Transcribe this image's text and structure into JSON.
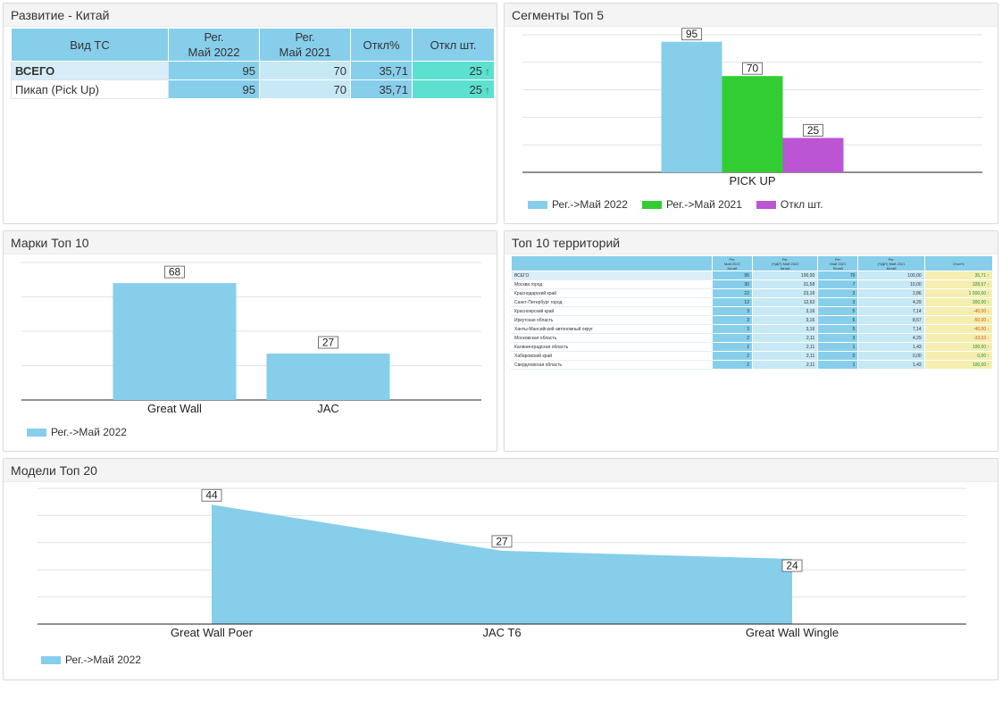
{
  "panel1": {
    "title": "Развитие - Китай",
    "headers": [
      "Вид ТС",
      "Рег.\nМай 2022",
      "Рег.\nМай 2021",
      "Откл%",
      "Откл шт."
    ],
    "rows": [
      {
        "label": "ВСЕГО",
        "v2022": "95",
        "v2021": "70",
        "pct": "35,71",
        "diff": "25",
        "arrow": "↑"
      },
      {
        "label": "Пикап (Pick Up)",
        "v2022": "95",
        "v2021": "70",
        "pct": "35,71",
        "diff": "25",
        "arrow": "↑"
      }
    ]
  },
  "panel2": {
    "title": "Сегменты Топ 5",
    "legend": [
      "Рег.->Май 2022",
      "Рег.->Май 2021",
      "Откл шт."
    ]
  },
  "panel3": {
    "title": "Марки Топ 10",
    "legend": [
      "Рег.->Май 2022"
    ]
  },
  "panel4": {
    "title": "Топ 10 территорий",
    "headers": [
      "",
      "Рег.\nМай 2022\nКитай",
      "Рег.\n(%ДП) Май 2022\nКитай",
      "Рег.\nМай 2021\nКитай",
      "Рег.\n(%ДП) Май 2021\nКитай",
      "Откл%"
    ],
    "rows": [
      {
        "label": "ВСЕГО",
        "a": "95",
        "b": "100,00",
        "c": "70",
        "d": "100,00",
        "e": "35,71",
        "dir": "up"
      },
      {
        "label": "Москва город",
        "a": "30",
        "b": "31,58",
        "c": "7",
        "d": "10,00",
        "e": "328,57",
        "dir": "up"
      },
      {
        "label": "Краснодарский край",
        "a": "22",
        "b": "23,16",
        "c": "2",
        "d": "2,86",
        "e": "1 000,00",
        "dir": "up"
      },
      {
        "label": "Санкт-Петербург город",
        "a": "12",
        "b": "12,63",
        "c": "3",
        "d": "4,29",
        "e": "300,00",
        "dir": "up"
      },
      {
        "label": "Красноярский край",
        "a": "3",
        "b": "3,16",
        "c": "5",
        "d": "7,14",
        "e": "-40,00",
        "dir": "down"
      },
      {
        "label": "Иркутская область",
        "a": "3",
        "b": "3,16",
        "c": "6",
        "d": "8,57",
        "e": "-50,00",
        "dir": "down"
      },
      {
        "label": "Ханты-Мансийский автономный округ",
        "a": "3",
        "b": "3,16",
        "c": "5",
        "d": "7,14",
        "e": "-40,00",
        "dir": "down"
      },
      {
        "label": "Московская область",
        "a": "2",
        "b": "2,11",
        "c": "3",
        "d": "4,29",
        "e": "-33,33",
        "dir": "down"
      },
      {
        "label": "Калининградская область",
        "a": "2",
        "b": "2,11",
        "c": "1",
        "d": "1,43",
        "e": "100,00",
        "dir": "up"
      },
      {
        "label": "Хабаровский край",
        "a": "2",
        "b": "2,11",
        "c": "0",
        "d": "0,00",
        "e": "0,00",
        "dir": "up"
      },
      {
        "label": "Свердловская область",
        "a": "2",
        "b": "2,11",
        "c": "1",
        "d": "1,43",
        "e": "100,00",
        "dir": "up"
      }
    ]
  },
  "panel5": {
    "title": "Модели Топ 20",
    "legend": [
      "Рег.->Май 2022"
    ]
  },
  "colors": {
    "blue": "#87ceeb",
    "green": "#32cd32",
    "purple": "#bb55d3",
    "teal": "#5de0d0",
    "arrow_up": "#1a8f3c",
    "arrow_down": "#d0581c"
  },
  "chart_data": [
    {
      "type": "bar",
      "categories": [
        "PICK UP"
      ],
      "series": [
        {
          "name": "Рег.->Май 2022",
          "values": [
            95
          ]
        },
        {
          "name": "Рег.->Май 2021",
          "values": [
            70
          ]
        },
        {
          "name": "Откл шт.",
          "values": [
            25
          ]
        }
      ],
      "ylim": [
        0,
        100
      ],
      "grid": true,
      "legend": "bottom-left"
    },
    {
      "type": "bar",
      "categories": [
        "Great Wall",
        "JAC"
      ],
      "series": [
        {
          "name": "Рег.->Май 2022",
          "values": [
            68,
            27
          ]
        }
      ],
      "ylim": [
        0,
        80
      ],
      "grid": true,
      "legend": "bottom-left"
    },
    {
      "type": "area",
      "categories": [
        "Great Wall Poer",
        "JAC T6",
        "Great Wall Wingle"
      ],
      "series": [
        {
          "name": "Рег.->Май 2022",
          "values": [
            44,
            27,
            24
          ]
        }
      ],
      "ylim": [
        0,
        50
      ],
      "grid": true,
      "legend": "bottom-left"
    }
  ]
}
